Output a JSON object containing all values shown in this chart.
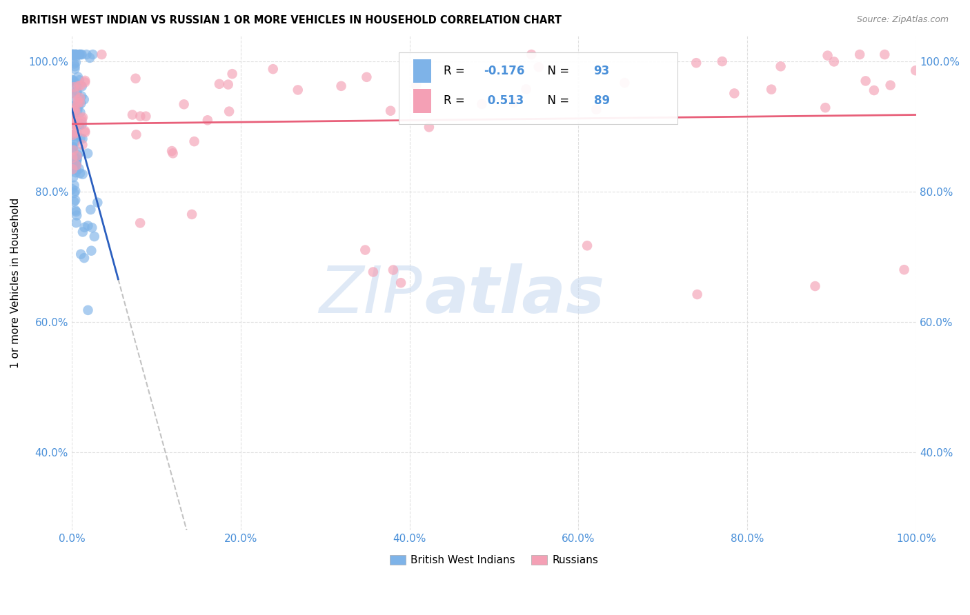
{
  "title": "BRITISH WEST INDIAN VS RUSSIAN 1 OR MORE VEHICLES IN HOUSEHOLD CORRELATION CHART",
  "source": "Source: ZipAtlas.com",
  "ylabel": "1 or more Vehicles in Household",
  "blue_color": "#7eb3e8",
  "pink_color": "#f4a0b5",
  "blue_line_color": "#2b5fbf",
  "pink_line_color": "#e8607a",
  "legend_R_blue": "-0.176",
  "legend_N_blue": "93",
  "legend_R_pink": "0.513",
  "legend_N_pink": "89",
  "legend_label_blue": "British West Indians",
  "legend_label_pink": "Russians",
  "xtick_labels": [
    "0.0%",
    "20.0%",
    "40.0%",
    "60.0%",
    "80.0%",
    "100.0%"
  ],
  "ytick_labels": [
    "40.0%",
    "60.0%",
    "80.0%",
    "100.0%"
  ],
  "tick_color": "#4a90d9",
  "watermark_zip_color": "#c5d8f0",
  "watermark_atlas_color": "#c5d8f0",
  "grid_color": "#dddddd",
  "legend_edge_color": "#cccccc"
}
